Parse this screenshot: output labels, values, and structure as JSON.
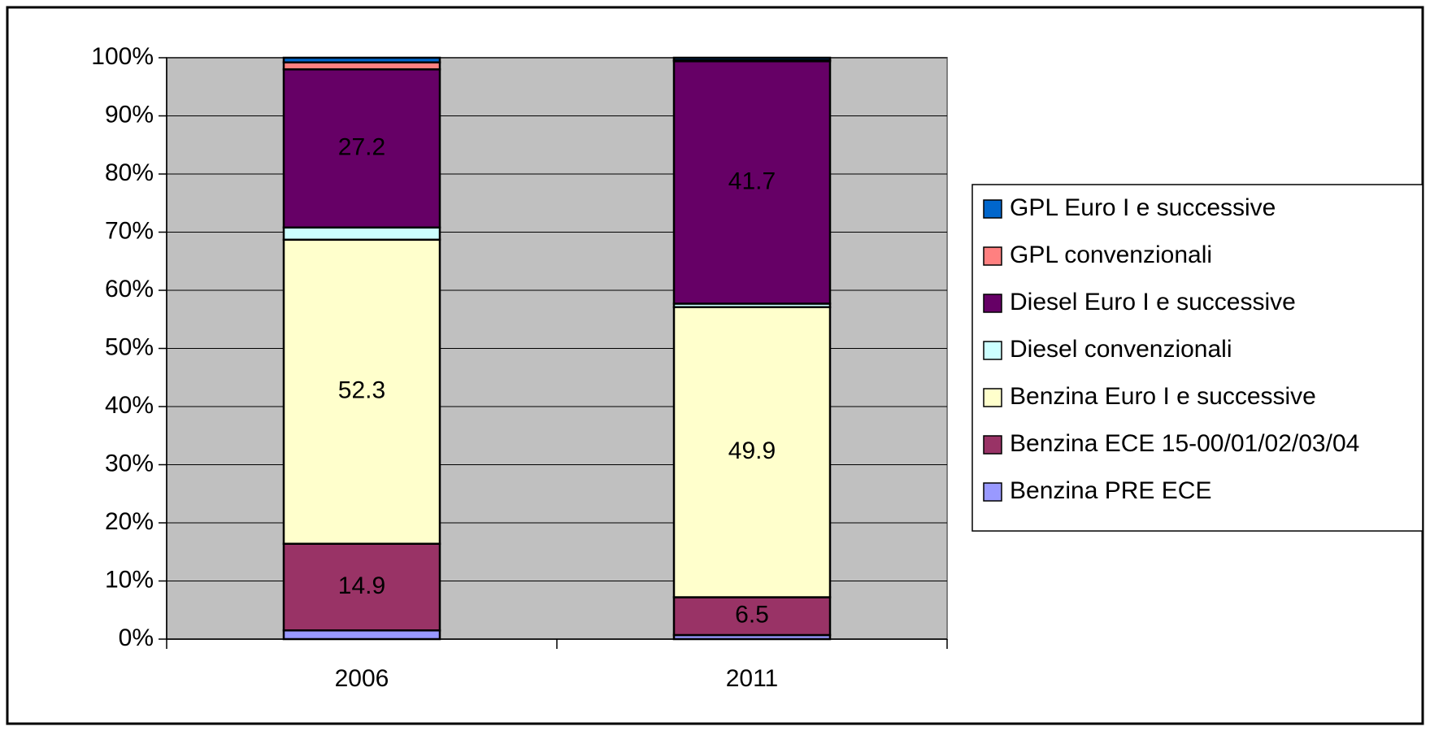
{
  "chart_data": {
    "type": "stacked_bar_percent",
    "categories": [
      "2006",
      "2011"
    ],
    "series": [
      {
        "name": "Benzina PRE ECE",
        "color": "#9999ff",
        "values": [
          1.5,
          0.7
        ]
      },
      {
        "name": "Benzina ECE 15-00/01/02/03/04",
        "color": "#993366",
        "values": [
          14.9,
          6.5
        ],
        "data_labels": true
      },
      {
        "name": "Benzina Euro I e successive",
        "color": "#ffffcc",
        "values": [
          52.3,
          49.9
        ],
        "data_labels": true
      },
      {
        "name": "Diesel convenzionali",
        "color": "#ccffff",
        "values": [
          2.1,
          0.6
        ]
      },
      {
        "name": "Diesel Euro I e successive",
        "color": "#660066",
        "values": [
          27.2,
          41.7
        ],
        "data_labels": true
      },
      {
        "name": "GPL convenzionali",
        "color": "#ff8080",
        "values": [
          1.2,
          0.2
        ]
      },
      {
        "name": "GPL Euro I e successive",
        "color": "#0066cc",
        "values": [
          0.8,
          0.4
        ]
      }
    ],
    "ylim": [
      0,
      100
    ],
    "yticks": [
      {
        "value": 0,
        "label": "0%"
      },
      {
        "value": 10,
        "label": "10%"
      },
      {
        "value": 20,
        "label": "20%"
      },
      {
        "value": 30,
        "label": "30%"
      },
      {
        "value": 40,
        "label": "40%"
      },
      {
        "value": 50,
        "label": "50%"
      },
      {
        "value": 60,
        "label": "60%"
      },
      {
        "value": 70,
        "label": "70%"
      },
      {
        "value": 80,
        "label": "80%"
      },
      {
        "value": 90,
        "label": "90%"
      },
      {
        "value": 100,
        "label": "100%"
      }
    ],
    "grid": true,
    "plot_background": "#c0c0c0",
    "legend": "right"
  }
}
